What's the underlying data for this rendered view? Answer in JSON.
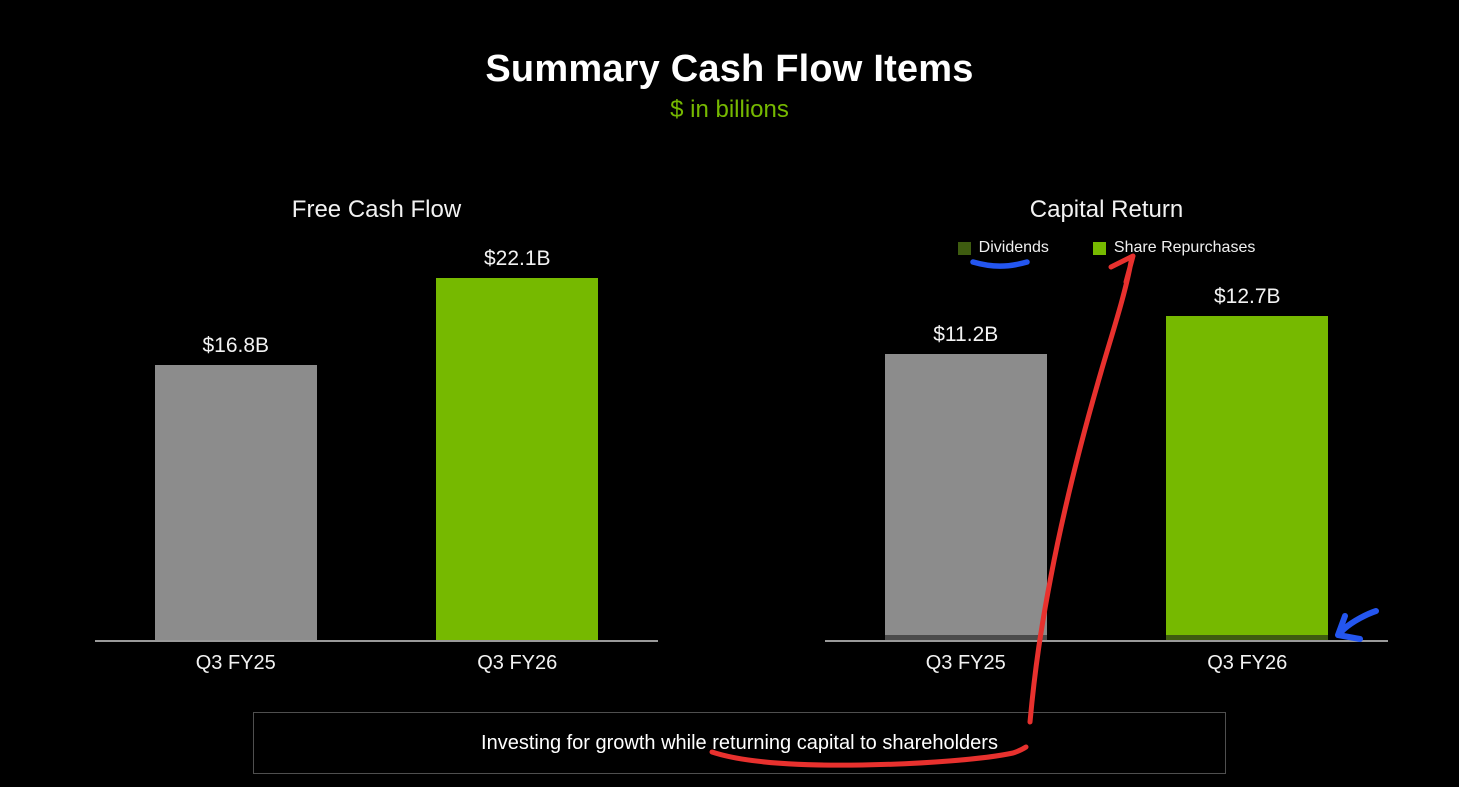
{
  "slide": {
    "title": "Summary Cash Flow Items",
    "subtitle": "$ in billions",
    "footer_note": "Investing for growth while returning capital to shareholders"
  },
  "colors": {
    "background": "#000000",
    "nvidia_green": "#76b900",
    "dark_green": "#3e5c10",
    "gray_bar": "#8c8c8c",
    "dark_gray_bar": "#4b4b4b",
    "axis_line": "#9a9a9a",
    "annotation_red": "#e8312e",
    "annotation_blue": "#2456f0"
  },
  "chart_data": [
    {
      "type": "bar",
      "title": "Free Cash Flow",
      "categories": [
        "Q3 FY25",
        "Q3 FY26"
      ],
      "series": [
        {
          "name": "Free Cash Flow",
          "values": [
            16.8,
            22.1
          ],
          "colors": [
            "#8c8c8c",
            "#76b900"
          ]
        }
      ],
      "value_labels": [
        "$16.8B",
        "$22.1B"
      ],
      "unit": "$ billions",
      "grid": false
    },
    {
      "type": "stacked-bar",
      "title": "Capital Return",
      "categories": [
        "Q3 FY25",
        "Q3 FY26"
      ],
      "series": [
        {
          "name": "Share Repurchases",
          "values": [
            11.0,
            12.5
          ],
          "colors": [
            "#8c8c8c",
            "#76b900"
          ]
        },
        {
          "name": "Dividends",
          "values": [
            0.2,
            0.2
          ],
          "colors": [
            "#4b4b4b",
            "#3e5c10"
          ]
        }
      ],
      "value_labels": [
        "$11.2B",
        "$12.7B"
      ],
      "unit": "$ billions",
      "grid": false,
      "legend": [
        {
          "label": "Dividends",
          "color": "#3e5c10"
        },
        {
          "label": "Share Repurchases",
          "color": "#76b900"
        }
      ]
    }
  ],
  "annotations": [
    {
      "name": "blue-underline",
      "color": "#2456f0",
      "marks": "Dividends legend label"
    },
    {
      "name": "red-arrow",
      "color": "#e8312e",
      "marks": "from footer note up to Share Repurchases legend label"
    },
    {
      "name": "red-underline",
      "color": "#e8312e",
      "marks": "returning capital to shareholders"
    },
    {
      "name": "blue-arrow",
      "color": "#2456f0",
      "marks": "Q3 FY26 dividends bar segment"
    }
  ]
}
